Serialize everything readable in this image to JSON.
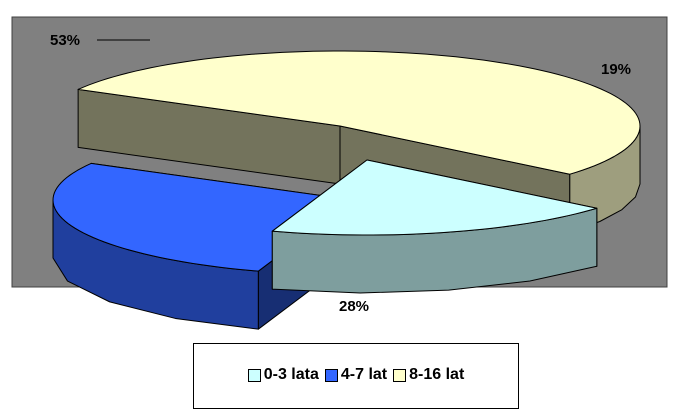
{
  "chart_data": {
    "type": "pie",
    "slices": [
      {
        "label": "0-3 lata",
        "value": 19,
        "value_label": "19%",
        "color": "#ccffff"
      },
      {
        "label": "4-7 lat",
        "value": 28,
        "value_label": "28%",
        "color": "#3366ff"
      },
      {
        "label": "8-16 lat",
        "value": 53,
        "value_label": "53%",
        "color": "#ffffcc"
      }
    ],
    "plot_background": "#808080",
    "style": "3d-exploded",
    "legend_position": "bottom"
  }
}
